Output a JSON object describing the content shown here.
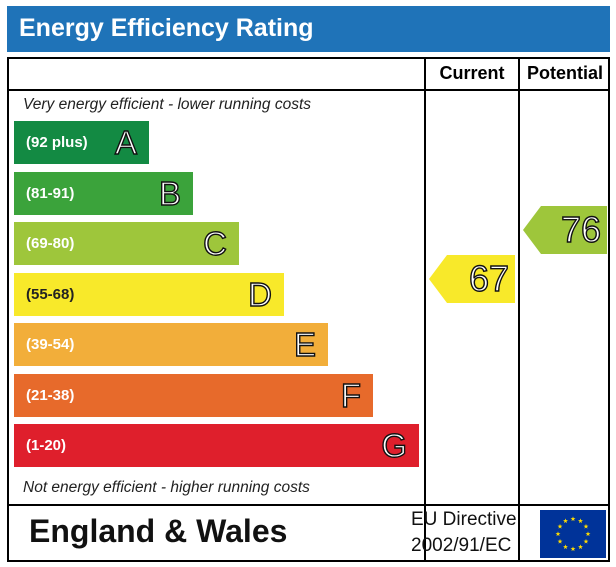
{
  "title": "Energy Efficiency Rating",
  "columns": {
    "current": "Current",
    "potential": "Potential"
  },
  "captions": {
    "top": "Very energy efficient - lower running costs",
    "bottom": "Not energy efficient - higher running costs"
  },
  "chart_data": {
    "type": "bar",
    "bands": [
      {
        "range": "(92 plus)",
        "letter": "A",
        "color": "#138a43"
      },
      {
        "range": "(81-91)",
        "letter": "B",
        "color": "#3ba33b"
      },
      {
        "range": "(69-80)",
        "letter": "C",
        "color": "#9ec63b"
      },
      {
        "range": "(55-68)",
        "letter": "D",
        "color": "#f8e92a"
      },
      {
        "range": "(39-54)",
        "letter": "E",
        "color": "#f2ae3a"
      },
      {
        "range": "(21-38)",
        "letter": "F",
        "color": "#e76a2b"
      },
      {
        "range": "(1-20)",
        "letter": "G",
        "color": "#df1f2c"
      }
    ],
    "current": {
      "value": "67",
      "band": "D",
      "color": "#f8e92a"
    },
    "potential": {
      "value": "76",
      "band": "C",
      "color": "#9ec63b"
    }
  },
  "footer": {
    "region": "England & Wales",
    "directive_line1": "EU Directive",
    "directive_line2": "2002/91/EC",
    "flag_color": "#003399",
    "star_color": "#ffdd00"
  }
}
